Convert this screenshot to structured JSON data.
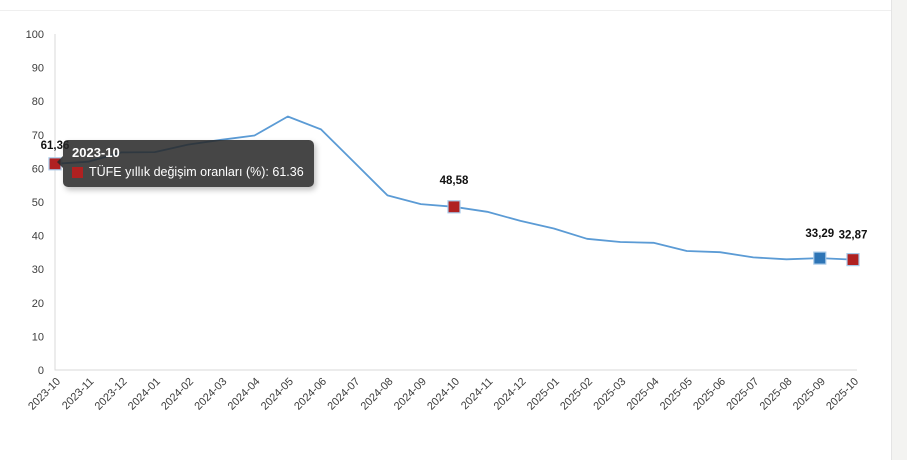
{
  "page": {
    "background": "#ffffff"
  },
  "colors": {
    "line": "#5b9bd5",
    "marker_red": "#b02121",
    "marker_blue": "#2e75b6",
    "marker_stroke": "#a7c9e8",
    "axis": "#d9d9d9",
    "tick_label": "#3d3d3d",
    "data_label": "#111111",
    "tooltip_bg": "rgba(40,40,40,0.86)"
  },
  "tooltip": {
    "title": "2023-10",
    "body": "TÜFE yıllık değişim oranları (%): 61.36"
  },
  "chart_data": {
    "type": "line",
    "title": "",
    "xlabel": "",
    "ylabel": "",
    "ylim": [
      0,
      100
    ],
    "ytick_step": 10,
    "grid": false,
    "legend_position": "none",
    "x_label_rotation": -45,
    "categories": [
      "2023-10",
      "2023-11",
      "2023-12",
      "2024-01",
      "2024-02",
      "2024-03",
      "2024-04",
      "2024-05",
      "2024-06",
      "2024-07",
      "2024-08",
      "2024-09",
      "2024-10",
      "2024-11",
      "2024-12",
      "2025-01",
      "2025-02",
      "2025-03",
      "2025-04",
      "2025-05",
      "2025-06",
      "2025-07",
      "2025-08",
      "2025-09",
      "2025-10"
    ],
    "series": [
      {
        "name": "TÜFE yıllık değişim oranları (%)",
        "color": "#5b9bd5",
        "values": [
          61.36,
          61.98,
          64.77,
          64.86,
          67.07,
          68.5,
          69.8,
          75.45,
          71.6,
          61.78,
          51.97,
          49.38,
          48.58,
          47.09,
          44.38,
          42.12,
          39.05,
          38.1,
          37.86,
          35.41,
          35.05,
          33.52,
          32.95,
          33.29,
          32.87
        ]
      }
    ],
    "annotations": [
      {
        "category": "2023-10",
        "label": "61,36",
        "marker_color": "#b02121",
        "label_dy": -15
      },
      {
        "category": "2024-10",
        "label": "48,58",
        "marker_color": "#b02121",
        "label_dy": -23
      },
      {
        "category": "2025-09",
        "label": "33,29",
        "marker_color": "#2e75b6",
        "label_dy": -21
      },
      {
        "category": "2025-10",
        "label": "32,87",
        "marker_color": "#b02121",
        "label_dy": -21
      }
    ]
  }
}
